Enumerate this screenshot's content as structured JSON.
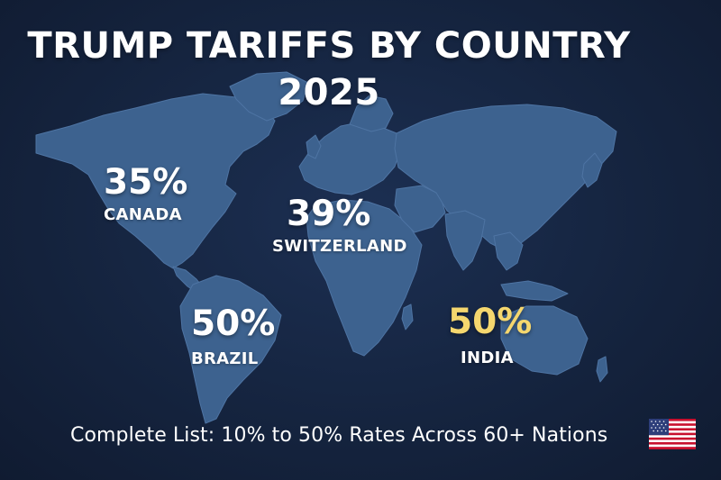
{
  "header": {
    "title_line1": "TRUMP TARIFFS BY COUNTRY",
    "title_line2": "2025"
  },
  "callouts": [
    {
      "country": "CANADA",
      "rate": "35%",
      "color": "#ffffff"
    },
    {
      "country": "SWITZERLAND",
      "rate": "39%",
      "color": "#ffffff"
    },
    {
      "country": "BRAZIL",
      "rate": "50%",
      "color": "#ffffff"
    },
    {
      "country": "INDIA",
      "rate": "50%",
      "color": "#f5d76e"
    }
  ],
  "footer": {
    "text": "Complete List: 10% to 50% Rates Across 60+ Nations"
  },
  "flag": {
    "icon": "us-flag-icon"
  },
  "colors": {
    "background": "#14223d",
    "land": "#3d628f",
    "highlight": "#f5d76e",
    "text": "#ffffff"
  }
}
